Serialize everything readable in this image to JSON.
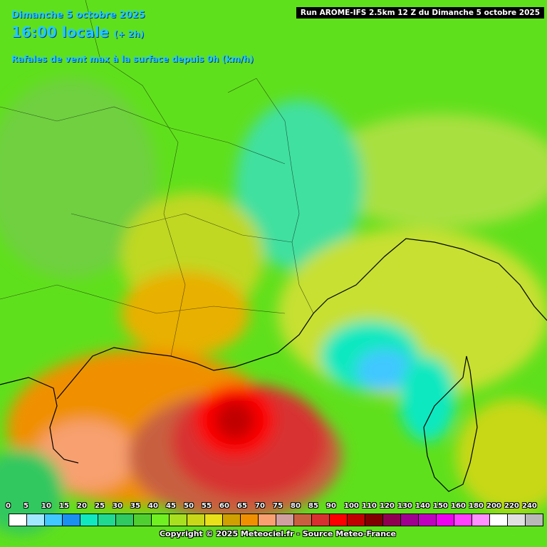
{
  "header": {
    "date": "Dimanche 5 octobre 2025",
    "time": "16:00 locale",
    "offset": "(+ 2h)",
    "parameter": "Rafales de vent max à la surface depuis 0h (km/h)",
    "run": "Run AROME-IFS 2.5km 12 Z du Dimanche 5 octobre 2025"
  },
  "legend": [
    {
      "label": "0",
      "color": "#ffffff"
    },
    {
      "label": "5",
      "color": "#a0e8ff"
    },
    {
      "label": "10",
      "color": "#40c8ff"
    },
    {
      "label": "15",
      "color": "#1a90f0"
    },
    {
      "label": "20",
      "color": "#10e8c0"
    },
    {
      "label": "25",
      "color": "#20d890"
    },
    {
      "label": "30",
      "color": "#30c860"
    },
    {
      "label": "35",
      "color": "#50d030"
    },
    {
      "label": "40",
      "color": "#70f020"
    },
    {
      "label": "45",
      "color": "#a8e020"
    },
    {
      "label": "50",
      "color": "#c8d818"
    },
    {
      "label": "55",
      "color": "#e8e018"
    },
    {
      "label": "60",
      "color": "#d0a000"
    },
    {
      "label": "65",
      "color": "#f09000"
    },
    {
      "label": "70",
      "color": "#f8a070"
    },
    {
      "label": "75",
      "color": "#d0a0a0"
    },
    {
      "label": "80",
      "color": "#c86040"
    },
    {
      "label": "85",
      "color": "#d83030"
    },
    {
      "label": "90",
      "color": "#ff0000"
    },
    {
      "label": "100",
      "color": "#c00000"
    },
    {
      "label": "110",
      "color": "#800000"
    },
    {
      "label": "120",
      "color": "#900050"
    },
    {
      "label": "130",
      "color": "#a00090"
    },
    {
      "label": "140",
      "color": "#c000c0"
    },
    {
      "label": "150",
      "color": "#f000f0"
    },
    {
      "label": "160",
      "color": "#ff40ff"
    },
    {
      "label": "180",
      "color": "#ff90ff"
    },
    {
      "label": "200",
      "color": "#ffffff"
    },
    {
      "label": "220",
      "color": "#e0e0e0"
    },
    {
      "label": "240",
      "color": "#b8b8b8"
    }
  ],
  "footer": {
    "copyright": "Copyright © 2025 Meteociel.fr - Source Meteo-France"
  }
}
